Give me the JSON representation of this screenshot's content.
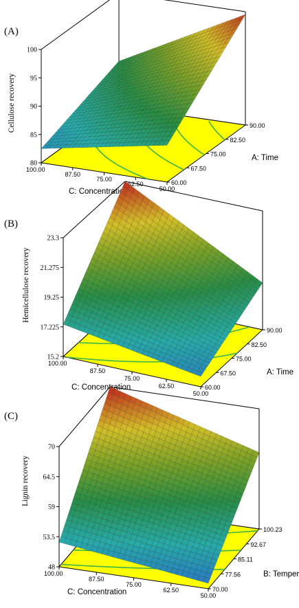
{
  "chart_data": [
    {
      "type": "surface3d",
      "panel_label": "(A)",
      "zlabel": "Cellulose recovery",
      "xlabel": "C: Concentration",
      "ylabel": "A: Time",
      "z_ticks": [
        "80",
        "85",
        "90",
        "95",
        "100"
      ],
      "x_ticks": [
        "100.00",
        "87.50",
        "75.00",
        "62.50",
        "50.00"
      ],
      "y_ticks": [
        "60.00",
        "67.50",
        "75.00",
        "82.50",
        "90.00"
      ],
      "zlim": [
        80,
        100
      ],
      "surface_corners": {
        "c100_t60": 82.5,
        "c50_t60": 86.5,
        "c100_t90": 88.0,
        "c50_t90": 99.5
      },
      "colormap": "blue-green-yellow-red",
      "base_contour_fill": "#ffff00",
      "base_contour_line": "#3cb44b"
    },
    {
      "type": "surface3d",
      "panel_label": "(B)",
      "zlabel": "Hemicellulose  recovery",
      "xlabel": "C: Concentration",
      "ylabel": "A: Time",
      "z_ticks": [
        "15.2",
        "17.225",
        "19.25",
        "21.275",
        "23.3"
      ],
      "x_ticks": [
        "100.00",
        "87.50",
        "75.00",
        "62.50",
        "50.00"
      ],
      "y_ticks": [
        "60.00",
        "67.50",
        "75.00",
        "82.50",
        "90.00"
      ],
      "zlim": [
        15.2,
        23.3
      ],
      "surface_corners": {
        "c100_t60": 17.4,
        "c50_t60": 15.9,
        "c100_t90": 23.3,
        "c50_t90": 18.4
      },
      "colormap": "blue-green-yellow-red",
      "base_contour_fill": "#ffff00",
      "base_contour_line": "#3cb44b"
    },
    {
      "type": "surface3d",
      "panel_label": "(C)",
      "zlabel": "Lignin recovery",
      "xlabel": "C: Concentration",
      "ylabel": "B: Temperature",
      "z_ticks": [
        "48",
        "53.5",
        "59",
        "64.5",
        "70"
      ],
      "x_ticks": [
        "100.00",
        "87.50",
        "75.00",
        "62.50",
        "50.00"
      ],
      "y_ticks": [
        "70.00",
        "77.56",
        "85.11",
        "92.67",
        "100.23"
      ],
      "zlim": [
        48,
        70
      ],
      "surface_corners": {
        "c100_t70": 52.5,
        "c50_t70": 49.0,
        "c100_t100": 70.0,
        "c50_t100": 62.0
      },
      "colormap": "blue-green-yellow-red",
      "base_contour_fill": "#ffff00",
      "base_contour_line": "#3cb44b"
    }
  ]
}
